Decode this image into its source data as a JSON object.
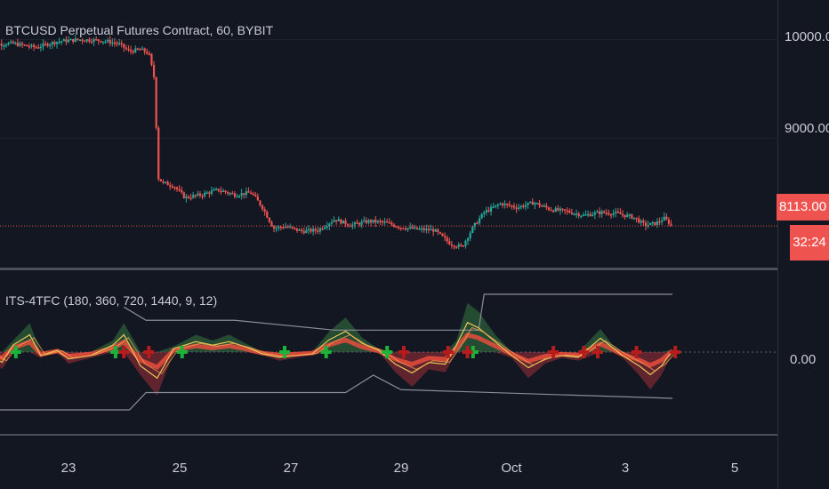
{
  "chart_data": [
    {
      "type": "candlestick",
      "title": "BTCUSD Perpetual Futures Contract, 60, BYBIT",
      "x_tick_labels": [
        "23",
        "25",
        "27",
        "29",
        "Oct",
        "3",
        "5"
      ],
      "y_tick_labels": [
        "10000.00",
        "9000.00"
      ],
      "ylim": [
        7700,
        10400
      ],
      "last_price": 8113,
      "last_price_label": "8113.00",
      "countdown_label": "32:24",
      "series": [
        {
          "name": "BTCUSD",
          "close_path": [
            [
              21.5,
              9950
            ],
            [
              22.0,
              9960
            ],
            [
              22.4,
              9920
            ],
            [
              22.8,
              9980
            ],
            [
              23.2,
              10000
            ],
            [
              23.6,
              9990
            ],
            [
              23.9,
              9960
            ],
            [
              24.1,
              9880
            ],
            [
              24.3,
              9900
            ],
            [
              24.45,
              9860
            ],
            [
              24.55,
              9600
            ],
            [
              24.62,
              8600
            ],
            [
              24.7,
              8550
            ],
            [
              24.9,
              8520
            ],
            [
              25.1,
              8400
            ],
            [
              25.4,
              8430
            ],
            [
              25.7,
              8480
            ],
            [
              26.0,
              8430
            ],
            [
              26.3,
              8450
            ],
            [
              26.5,
              8300
            ],
            [
              26.7,
              8090
            ],
            [
              26.9,
              8110
            ],
            [
              27.2,
              8060
            ],
            [
              27.5,
              8070
            ],
            [
              27.8,
              8180
            ],
            [
              28.1,
              8120
            ],
            [
              28.4,
              8160
            ],
            [
              28.7,
              8150
            ],
            [
              29.0,
              8100
            ],
            [
              29.3,
              8080
            ],
            [
              29.6,
              8070
            ],
            [
              29.9,
              7930
            ],
            [
              30.1,
              7900
            ],
            [
              30.3,
              8100
            ],
            [
              30.5,
              8250
            ],
            [
              30.8,
              8340
            ],
            [
              31.1,
              8300
            ],
            [
              31.4,
              8350
            ],
            [
              31.7,
              8280
            ],
            [
              32.0,
              8260
            ],
            [
              32.3,
              8220
            ],
            [
              32.6,
              8250
            ],
            [
              32.9,
              8240
            ],
            [
              33.2,
              8200
            ],
            [
              33.4,
              8120
            ],
            [
              33.6,
              8140
            ],
            [
              33.75,
              8190
            ],
            [
              33.9,
              8113
            ]
          ]
        }
      ]
    },
    {
      "type": "area",
      "title": "ITS-4TFC (180, 360, 720, 1440, 9, 12)",
      "y_tick_labels": [
        "0.00"
      ],
      "ylim": [
        -1.4,
        1.4
      ],
      "series": [
        {
          "name": "oscillator",
          "values": [
            [
              21.5,
              0.05
            ],
            [
              21.8,
              -0.3
            ],
            [
              22.0,
              0.2
            ],
            [
              22.3,
              0.5
            ],
            [
              22.5,
              -0.1
            ],
            [
              22.8,
              0.05
            ],
            [
              23.0,
              -0.2
            ],
            [
              23.4,
              -0.1
            ],
            [
              23.8,
              0.2
            ],
            [
              24.0,
              0.5
            ],
            [
              24.3,
              -0.4
            ],
            [
              24.6,
              -0.75
            ],
            [
              24.9,
              0.1
            ],
            [
              25.3,
              0.3
            ],
            [
              25.6,
              0.2
            ],
            [
              25.9,
              0.3
            ],
            [
              26.2,
              0.15
            ],
            [
              26.5,
              -0.05
            ],
            [
              26.8,
              -0.15
            ],
            [
              27.1,
              -0.1
            ],
            [
              27.4,
              -0.05
            ],
            [
              27.7,
              0.35
            ],
            [
              28.0,
              0.6
            ],
            [
              28.3,
              0.25
            ],
            [
              28.6,
              0.05
            ],
            [
              28.9,
              -0.35
            ],
            [
              29.2,
              -0.6
            ],
            [
              29.5,
              -0.3
            ],
            [
              29.8,
              -0.35
            ],
            [
              30.0,
              0.2
            ],
            [
              30.2,
              0.85
            ],
            [
              30.4,
              0.7
            ],
            [
              30.7,
              0.3
            ],
            [
              31.0,
              -0.1
            ],
            [
              31.3,
              -0.45
            ],
            [
              31.6,
              -0.2
            ],
            [
              31.9,
              -0.1
            ],
            [
              32.2,
              -0.15
            ],
            [
              32.6,
              0.4
            ],
            [
              32.8,
              0.15
            ],
            [
              33.0,
              -0.1
            ],
            [
              33.3,
              -0.4
            ],
            [
              33.5,
              -0.65
            ],
            [
              33.7,
              -0.4
            ],
            [
              33.9,
              0.05
            ]
          ]
        },
        {
          "name": "upper_level",
          "values": [
            [
              24.0,
              0.78
            ],
            [
              24.4,
              0.55
            ],
            [
              26.0,
              0.55
            ],
            [
              27.8,
              0.38
            ],
            [
              30.4,
              0.38
            ],
            [
              30.5,
              1.0
            ],
            [
              33.9,
              1.0
            ]
          ]
        },
        {
          "name": "lower_level",
          "values": [
            [
              21.5,
              -1.0
            ],
            [
              24.1,
              -1.0
            ],
            [
              24.4,
              -0.7
            ],
            [
              28.0,
              -0.7
            ],
            [
              28.5,
              -0.4
            ],
            [
              29.0,
              -0.65
            ],
            [
              33.9,
              -0.8
            ]
          ]
        }
      ],
      "buy_markers_x": [
        22.05,
        23.85,
        25.05,
        26.9,
        27.65,
        28.75,
        30.3
      ],
      "sell_markers_x": [
        21.55,
        24.0,
        24.45,
        29.05,
        29.85,
        30.2,
        31.75,
        32.3,
        32.55,
        33.25,
        33.95
      ]
    }
  ]
}
